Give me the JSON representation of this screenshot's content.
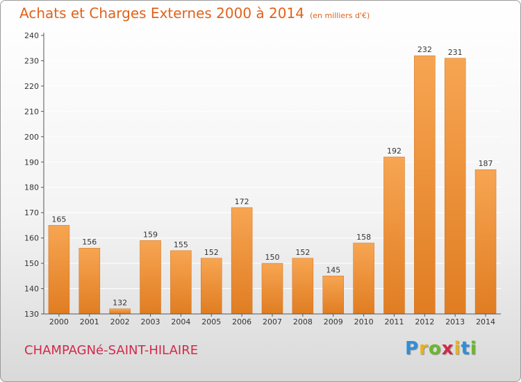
{
  "title": "Achats et Charges Externes 2000 à 2014",
  "subtitle": "(en milliers d'€)",
  "place": "CHAMPAGNé-SAINT-HILAIRE",
  "logo": {
    "letters": [
      "P",
      "r",
      "o",
      "x",
      "i",
      "t",
      "i"
    ],
    "colors": [
      "#2f8fd8",
      "#e8b21c",
      "#6ab82e",
      "#d2294a",
      "#e8b21c",
      "#2f8fd8",
      "#6ab82e"
    ]
  },
  "colors": {
    "bar_light": "#f7a552",
    "bar_dark": "#e07d22",
    "axis": "#555555",
    "grid": "#ffffff"
  },
  "chart_data": {
    "type": "bar",
    "title": "Achats et Charges Externes 2000 à 2014",
    "subtitle": "(en milliers d'€)",
    "categories": [
      "2000",
      "2001",
      "2002",
      "2003",
      "2004",
      "2005",
      "2006",
      "2007",
      "2008",
      "2009",
      "2010",
      "2011",
      "2012",
      "2013",
      "2014"
    ],
    "values": [
      165,
      156,
      132,
      159,
      155,
      152,
      172,
      150,
      152,
      145,
      158,
      192,
      232,
      231,
      187
    ],
    "yticks": [
      130,
      140,
      150,
      160,
      170,
      180,
      190,
      200,
      210,
      220,
      230,
      240
    ],
    "ylim": [
      130,
      240
    ],
    "xlabel": "",
    "ylabel": "",
    "grid": true
  }
}
